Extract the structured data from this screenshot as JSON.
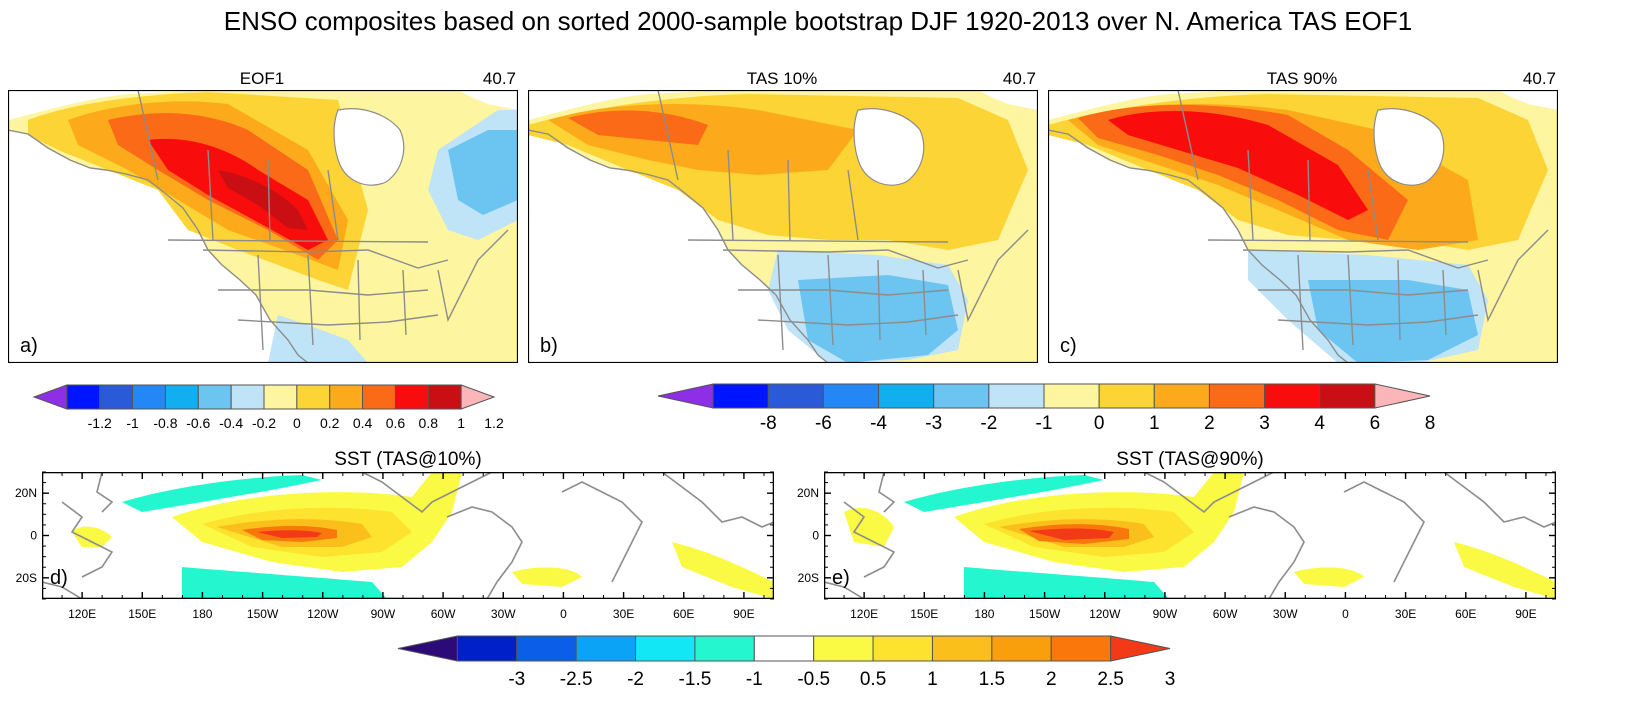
{
  "title": "ENSO composites based on sorted 2000-sample bootstrap DJF 1920-2013 over N. America TAS EOF1",
  "colors": {
    "land_outline": "#8c8c8c",
    "frame": "#000000",
    "white": "#ffffff"
  },
  "chart_data": [
    {
      "type": "heatmap",
      "id": "a",
      "title": "EOF1",
      "right_label": "40.7",
      "panel_label": "a)",
      "region": "North America",
      "variable": "TAS EOF1",
      "pattern": "positive loading maximum (~1.0) over western/central Canada decreasing southeastward; weak negative (-0.2 to -0.4) over northeastern Canada and parts of Mexico"
    },
    {
      "type": "heatmap",
      "id": "b",
      "title": "TAS 10%",
      "right_label": "40.7",
      "panel_label": "b)",
      "region": "North America",
      "variable": "TAS",
      "pattern": "warm anomalies (1 to 4) over Alaska and Canada; cool anomalies (-1 to -3) over southern and southeastern United States"
    },
    {
      "type": "heatmap",
      "id": "c",
      "title": "TAS 90%",
      "right_label": "40.7",
      "panel_label": "c)",
      "region": "North America",
      "variable": "TAS",
      "pattern": "strong warm anomalies (3 to 6) over Alaska and western/central Canada; cool anomalies (-1 to -3) over southern United States"
    },
    {
      "type": "heatmap",
      "id": "d",
      "title": "SST (TAS@10%)",
      "panel_label": "d)",
      "variable": "SST",
      "x_ticks": [
        "120E",
        "150E",
        "180",
        "150W",
        "120W",
        "90W",
        "60W",
        "30W",
        "0",
        "30E",
        "60E",
        "90E"
      ],
      "y_ticks": [
        "20N",
        "0",
        "20S"
      ],
      "pattern": "El Nino warm tongue in central/eastern equatorial Pacific peaking ~2.5 near 150W; weak cool anomalies (-0.5 to -1) in subtropical Pacific"
    },
    {
      "type": "heatmap",
      "id": "e",
      "title": "SST (TAS@90%)",
      "panel_label": "e)",
      "variable": "SST",
      "x_ticks": [
        "120E",
        "150E",
        "180",
        "150W",
        "120W",
        "90W",
        "60W",
        "30W",
        "0",
        "30E",
        "60E",
        "90E"
      ],
      "y_ticks": [
        "20N",
        "0",
        "20S"
      ],
      "pattern": "El Nino warm tongue in central/eastern equatorial Pacific peaking ~3 near 150W; weak cool anomalies (-0.5 to -1) in subtropical Pacific"
    }
  ],
  "colorbars": [
    {
      "id": "eof",
      "labels": [
        "-1.2",
        "-1",
        "-0.8",
        "-0.6",
        "-0.4",
        "-0.2",
        "0",
        "0.2",
        "0.4",
        "0.6",
        "0.8",
        "1",
        "1.2"
      ],
      "colors": [
        "#8e2ee6",
        "#0015ff",
        "#2a5ad8",
        "#2387f5",
        "#12aff0",
        "#6cc5f0",
        "#bfe3f7",
        "#fdf5a0",
        "#fdd435",
        "#fcaa1c",
        "#fb6a17",
        "#f90c0c",
        "#c90f14",
        "#fcb5b8"
      ]
    },
    {
      "id": "tas",
      "labels": [
        "-8",
        "-6",
        "-4",
        "-3",
        "-2",
        "-1",
        "0",
        "1",
        "2",
        "3",
        "4",
        "6",
        "8"
      ],
      "colors": [
        "#8e2ee6",
        "#0015ff",
        "#2a5ad8",
        "#2387f5",
        "#12aff0",
        "#6cc5f0",
        "#bfe3f7",
        "#fdf5a0",
        "#fdd435",
        "#fcaa1c",
        "#fb6a17",
        "#f90c0c",
        "#c90f14",
        "#fcb5b8"
      ]
    },
    {
      "id": "sst",
      "labels": [
        "-3",
        "-2.5",
        "-2",
        "-1.5",
        "-1",
        "-0.5",
        "0.5",
        "1",
        "1.5",
        "2",
        "2.5",
        "3"
      ],
      "colors": [
        "#2c0b78",
        "#0021c9",
        "#0a5ee8",
        "#0aa3f5",
        "#12e7f5",
        "#24f7cf",
        "#ffffff",
        "#fafa44",
        "#fde22e",
        "#fbbf1c",
        "#f99f0c",
        "#f8780c",
        "#f33a16"
      ]
    }
  ]
}
